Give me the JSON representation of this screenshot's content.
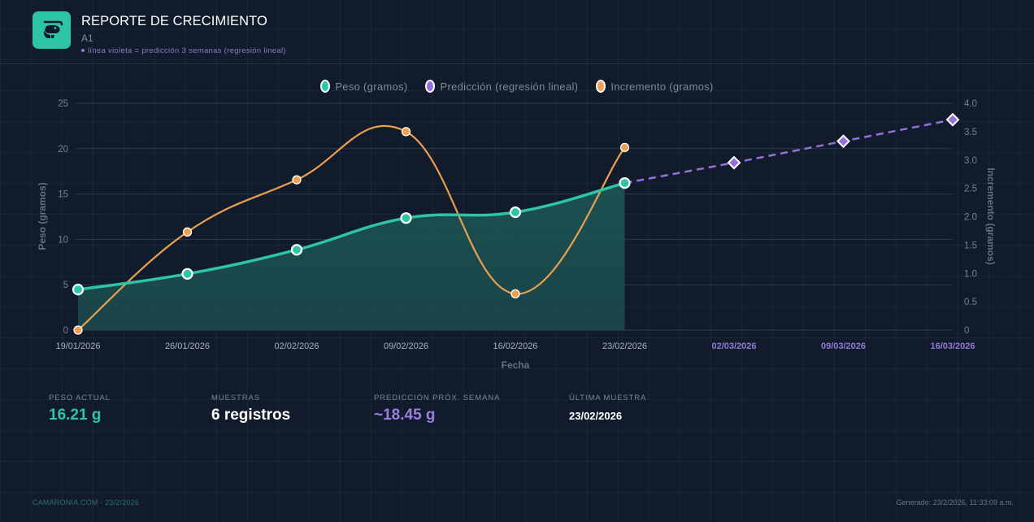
{
  "header": {
    "logo_icon": "shrimp-icon",
    "title": "REPORTE DE CRECIMIENTO",
    "subtitle": "A1",
    "note": "línea violeta = predicción 3 semanas (regresión lineal)"
  },
  "legend": [
    {
      "label": "Peso (gramos)",
      "color": "#2ec4a6"
    },
    {
      "label": "Predicción (regresión lineal)",
      "color": "#9370db"
    },
    {
      "label": "Incremento (gramos)",
      "color": "#f0a050"
    }
  ],
  "axes": {
    "left_title": "Peso (gramos)",
    "right_title": "Incremento (gramos)",
    "x_title": "Fecha",
    "left_ticks": [
      "0",
      "5",
      "10",
      "15",
      "20",
      "25"
    ],
    "right_ticks": [
      "0",
      "0.5",
      "1.0",
      "1.5",
      "2.0",
      "2.5",
      "3.0",
      "3.5",
      "4.0"
    ]
  },
  "chart_data": {
    "type": "line",
    "title": "",
    "xlabel": "Fecha",
    "ylabel": "Peso (gramos)",
    "y2label": "Incremento (gramos)",
    "ylim": [
      0,
      25
    ],
    "y2lim": [
      0,
      4.0
    ],
    "grid": true,
    "legend_position": "top",
    "categories": [
      "19/01/2026",
      "26/01/2026",
      "02/02/2026",
      "09/02/2026",
      "16/02/2026",
      "23/02/2026",
      "02/03/2026",
      "09/03/2026",
      "16/03/2026"
    ],
    "series": [
      {
        "name": "Peso (gramos)",
        "axis": "left",
        "color": "#2ec4a6",
        "fill": true,
        "values": [
          4.47,
          6.2,
          8.85,
          12.35,
          12.99,
          16.21,
          null,
          null,
          null
        ]
      },
      {
        "name": "Predicción (regresión lineal)",
        "axis": "left",
        "color": "#9370db",
        "dashed": true,
        "marker": "diamond",
        "values": [
          null,
          null,
          null,
          null,
          null,
          16.21,
          18.45,
          20.82,
          23.19
        ]
      },
      {
        "name": "Incremento (gramos)",
        "axis": "right",
        "color": "#f0a050",
        "values": [
          0,
          1.73,
          2.65,
          3.5,
          0.64,
          3.22,
          null,
          null,
          null
        ]
      }
    ],
    "prediction_categories": [
      "02/03/2026",
      "09/03/2026",
      "16/03/2026"
    ]
  },
  "stats": [
    {
      "label": "PESO ACTUAL",
      "value": "16.21 g",
      "color": "#2ec4a6"
    },
    {
      "label": "MUESTRAS",
      "value": "6 registros",
      "color": "#ffffff"
    },
    {
      "label": "PREDICCIÓN PRÓX. SEMANA",
      "value": "~18.45 g",
      "color": "#9a7fe0"
    },
    {
      "label": "ÚLTIMA MUESTRA",
      "value": "23/02/2026",
      "color": "#ffffff"
    }
  ],
  "footer": {
    "left": "CAMARONIA.COM - 23/2/2026",
    "right": "Generado: 23/2/2026, 11:33:09 a.m."
  }
}
